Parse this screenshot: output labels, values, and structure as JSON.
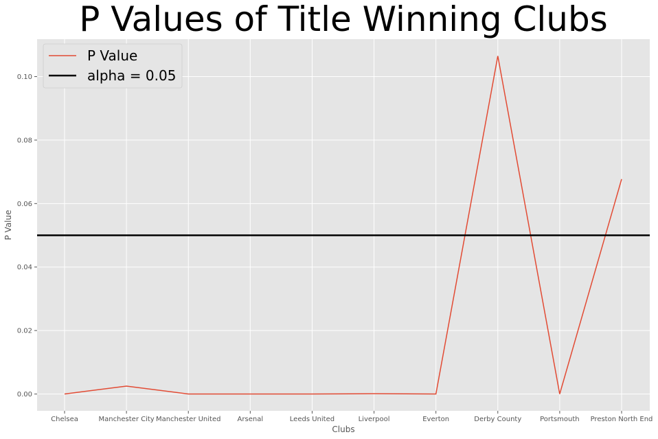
{
  "chart_data": {
    "type": "line",
    "title": "P Values of Title Winning Clubs",
    "xlabel": "Clubs",
    "ylabel": "P Value",
    "categories": [
      "Chelsea",
      "Manchester City",
      "Manchester United",
      "Arsenal",
      "Leeds United",
      "Liverpool",
      "Everton",
      "Derby County",
      "Portsmouth",
      "Preston North End"
    ],
    "series": [
      {
        "name": "P Value",
        "color": "#E24A33",
        "values": [
          0.0,
          0.0025,
          0.0,
          0.0,
          0.0,
          0.0001,
          0.0,
          0.1065,
          0.0,
          0.0677
        ]
      }
    ],
    "hlines": [
      {
        "name": "alpha = 0.05",
        "y": 0.05,
        "color": "#000000"
      }
    ],
    "yticks": [
      "0.00",
      "0.02",
      "0.04",
      "0.06",
      "0.08",
      "0.10"
    ],
    "ylim": [
      -0.0053,
      0.1118
    ],
    "grid": true,
    "legend": "top-left",
    "colors": {
      "background": "#E5E5E5",
      "grid": "#FFFFFF",
      "text": "#555555"
    }
  }
}
